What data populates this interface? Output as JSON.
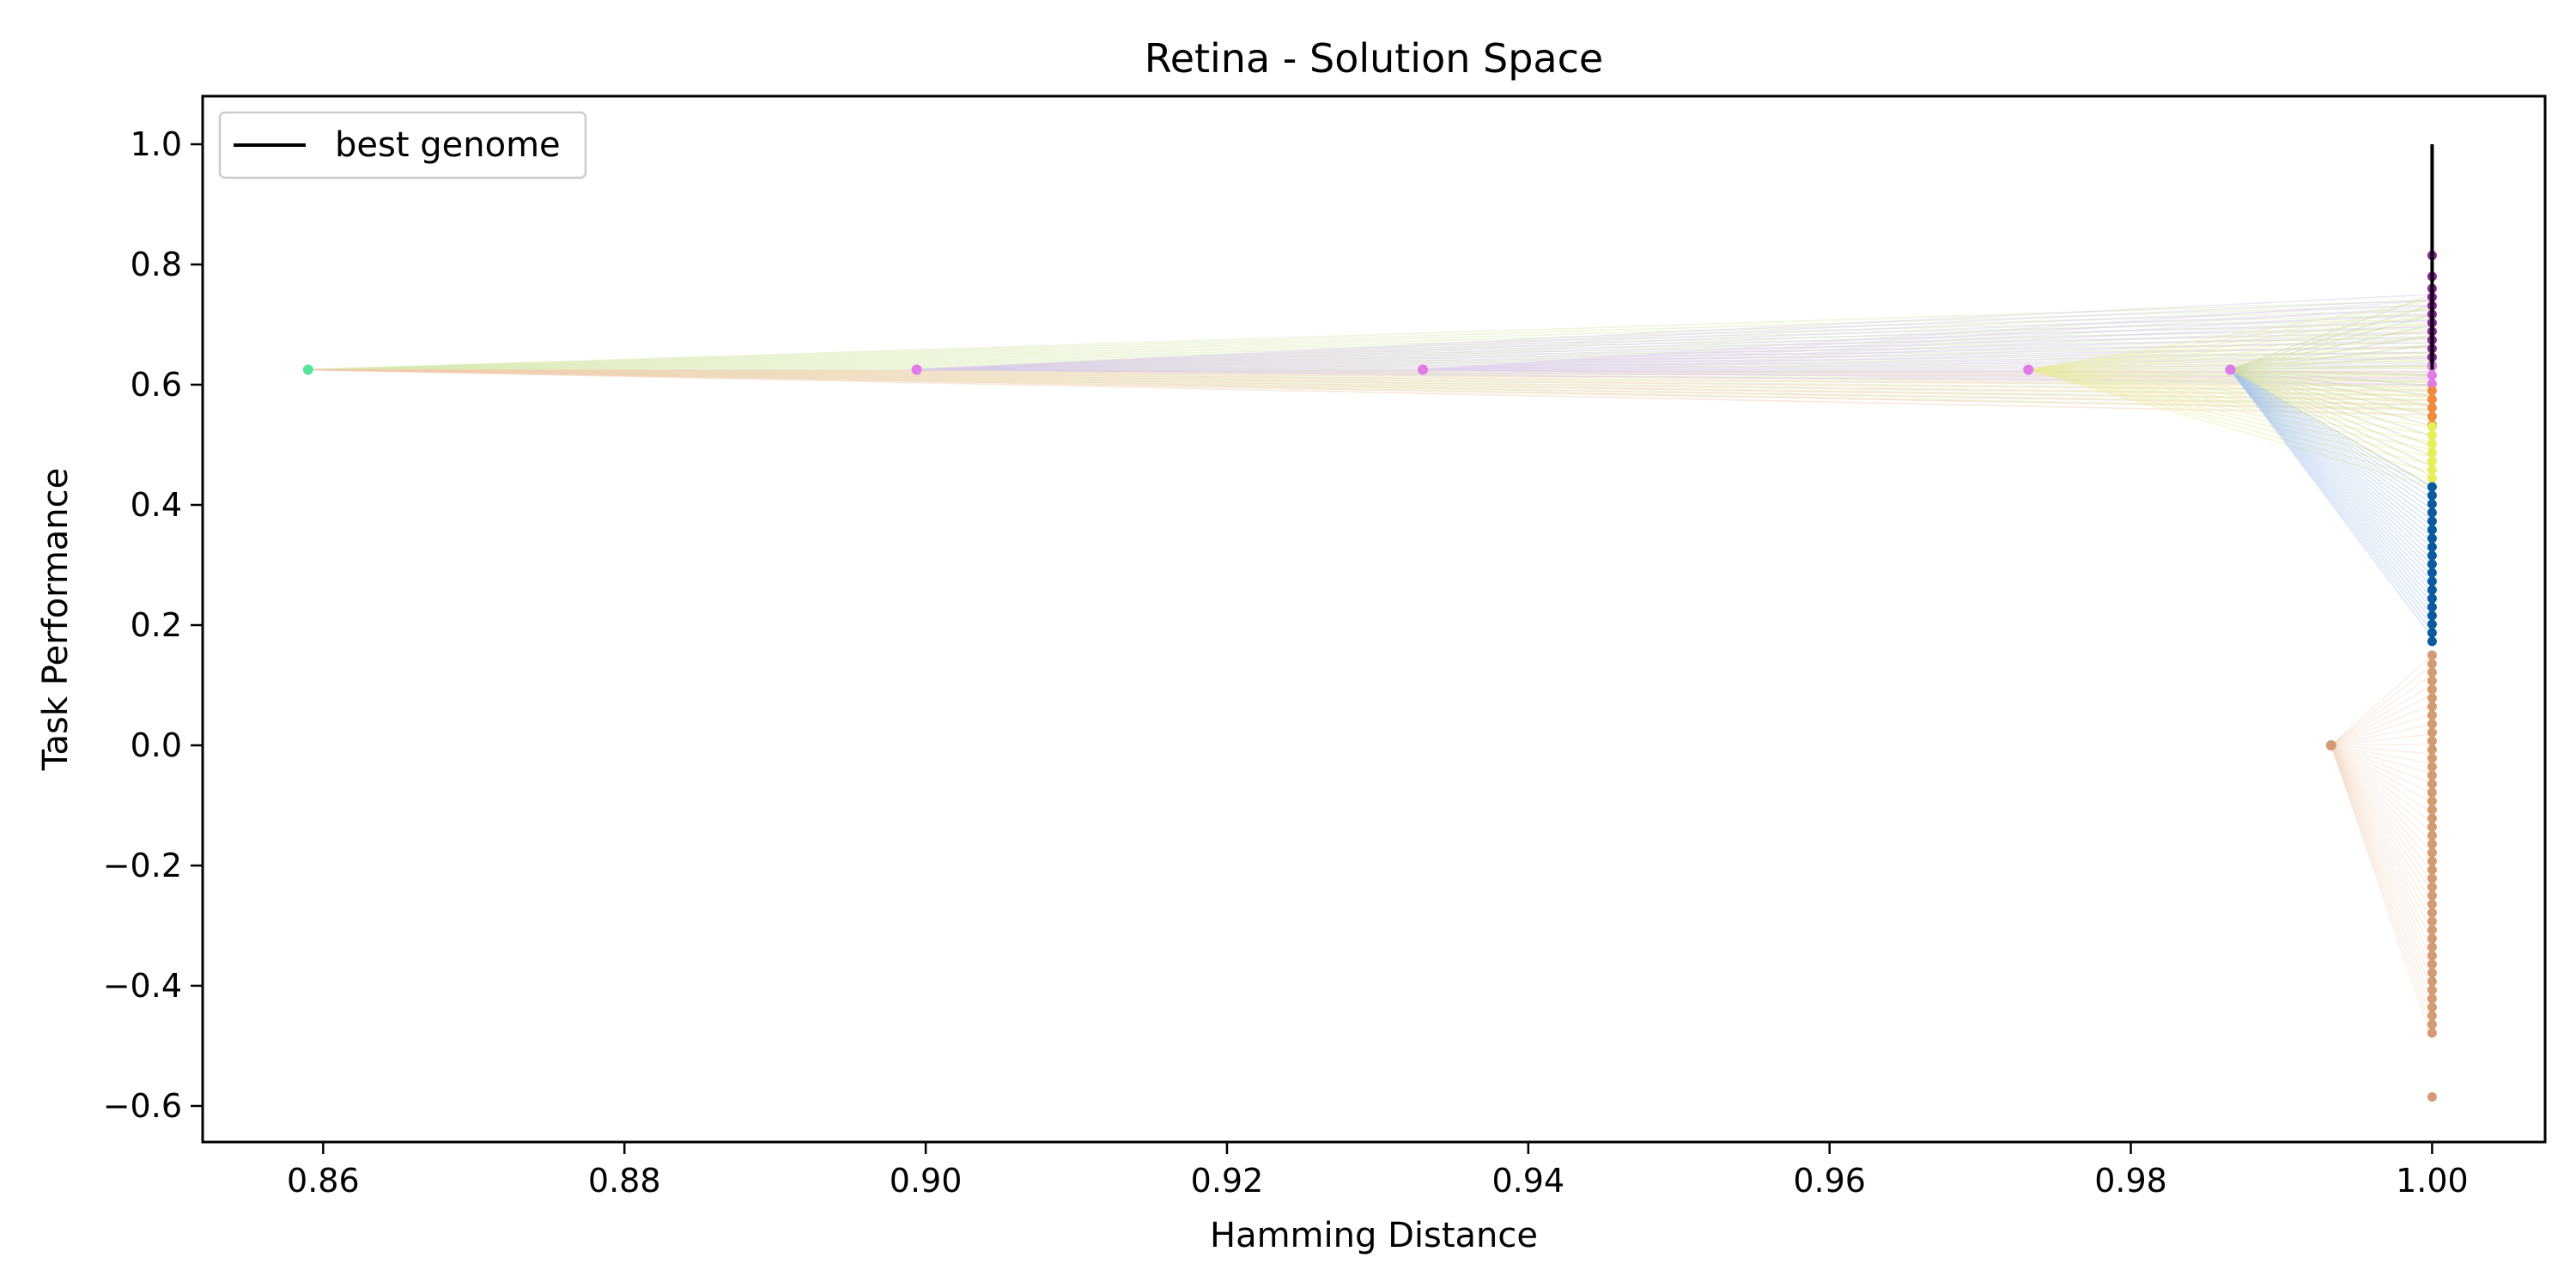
{
  "chart_data": {
    "type": "scatter",
    "title": "Retina - Solution Space",
    "xlabel": "Hamming Distance",
    "ylabel": "Task Performance",
    "xlim": [
      0.852,
      1.0075
    ],
    "ylim": [
      -0.66,
      1.08
    ],
    "xticks": [
      0.86,
      0.88,
      0.9,
      0.92,
      0.94,
      0.96,
      0.98,
      1.0
    ],
    "xtick_labels": [
      "0.86",
      "0.88",
      "0.90",
      "0.92",
      "0.94",
      "0.96",
      "0.98",
      "1.00"
    ],
    "yticks": [
      1.0,
      0.8,
      0.6,
      0.4,
      0.2,
      0.0,
      -0.2,
      -0.4,
      -0.6
    ],
    "ytick_labels": [
      "1.0",
      "0.8",
      "0.6",
      "0.4",
      "0.2",
      "0.0",
      "−0.2",
      "−0.4",
      "−0.6"
    ],
    "grid": false,
    "legend": {
      "placement": "top-left",
      "entries": [
        {
          "label": "best genome",
          "color": "#000000"
        }
      ]
    },
    "best_genome_line": {
      "x": 1.0,
      "y_from": 0.625,
      "y_to": 1.0,
      "color": "#000000"
    },
    "parents": [
      {
        "x": 0.859,
        "y": 0.625,
        "color": "#55e698"
      },
      {
        "x": 0.8994,
        "y": 0.625,
        "color": "#e07ae8"
      },
      {
        "x": 0.933,
        "y": 0.625,
        "color": "#e07ae8"
      },
      {
        "x": 0.9732,
        "y": 0.625,
        "color": "#e07ae8"
      },
      {
        "x": 0.9866,
        "y": 0.625,
        "color": "#e07ae8"
      },
      {
        "x": 0.9933,
        "y": 0.0,
        "color": "#d49a72"
      }
    ],
    "clusters": [
      {
        "name": "purple",
        "color": "#8b1f9e",
        "x": 1.0,
        "y_from": 0.62,
        "y_to": 0.76,
        "extra": [
          0.78,
          0.815
        ]
      },
      {
        "name": "magenta",
        "color": "#e07ae8",
        "x": 1.0,
        "y_from": 0.6,
        "y_to": 0.63,
        "extra": []
      },
      {
        "name": "orange",
        "color": "#f08a3e",
        "x": 1.0,
        "y_from": 0.53,
        "y_to": 0.59,
        "extra": []
      },
      {
        "name": "yellow",
        "color": "#e8ed5a",
        "x": 1.0,
        "y_from": 0.43,
        "y_to": 0.53,
        "extra": []
      },
      {
        "name": "blue",
        "color": "#0a5aa0",
        "x": 1.0,
        "y_from": 0.17,
        "y_to": 0.43,
        "extra": []
      },
      {
        "name": "tan",
        "color": "#d49a72",
        "x": 1.0,
        "y_from": -0.49,
        "y_to": 0.15,
        "extra": [
          -0.585
        ]
      }
    ],
    "fan_groups": [
      {
        "from": 0,
        "color": "#d8e8b0",
        "y_from": 0.56,
        "y_to": 0.74,
        "count": 24
      },
      {
        "from": 0,
        "color": "#f5c9b0",
        "y_from": 0.55,
        "y_to": 0.62,
        "count": 10
      },
      {
        "from": 1,
        "color": "#d9c9e8",
        "y_from": 0.6,
        "y_to": 0.75,
        "count": 18
      },
      {
        "from": 2,
        "color": "#e0d0f0",
        "y_from": 0.6,
        "y_to": 0.74,
        "count": 14
      },
      {
        "from": 3,
        "color": "#e8ec9a",
        "y_from": 0.43,
        "y_to": 0.74,
        "count": 26
      },
      {
        "from": 4,
        "color": "#a9c6ec",
        "y_from": 0.18,
        "y_to": 0.43,
        "count": 28
      },
      {
        "from": 4,
        "color": "#c9d6a0",
        "y_from": 0.43,
        "y_to": 0.75,
        "count": 20
      },
      {
        "from": 5,
        "color": "#f3dcc8",
        "y_from": -0.49,
        "y_to": 0.15,
        "count": 40
      }
    ]
  }
}
